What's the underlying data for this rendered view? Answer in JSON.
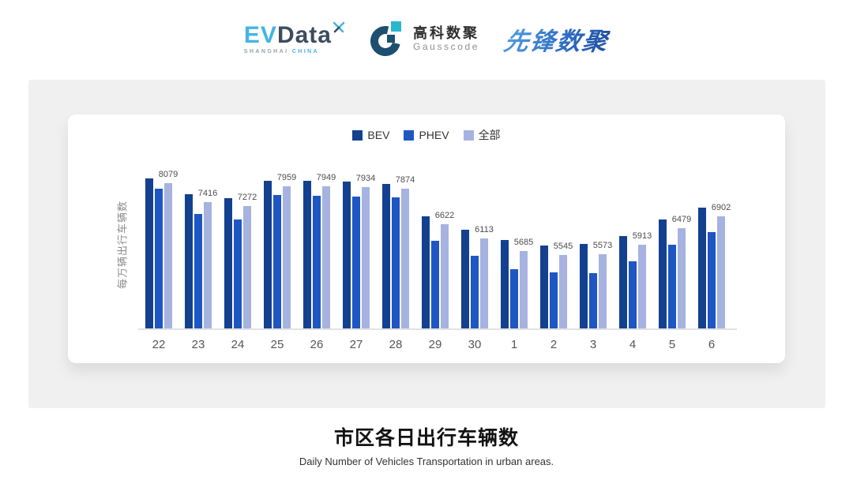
{
  "header": {
    "logo_evdata": {
      "ev": "EV",
      "data": "Data",
      "sub_left": "SHANGHAI",
      "sub_right": "CHINA"
    },
    "logo_gausscode": {
      "cn": "高科数聚",
      "en": "Gausscode"
    },
    "logo_xianfeng": {
      "text": "先锋数聚"
    }
  },
  "chart_data": {
    "type": "bar",
    "title": "市区各日出行车辆数",
    "subtitle": "Daily Number of Vehicles Transportation in urban areas.",
    "ylabel": "每万辆出行车辆数",
    "categories": [
      "22",
      "23",
      "24",
      "25",
      "26",
      "27",
      "28",
      "29",
      "30",
      "1",
      "2",
      "3",
      "4",
      "5",
      "6"
    ],
    "series": [
      {
        "key": "bev",
        "name": "BEV",
        "color": "#14418F",
        "values": [
          8240,
          7680,
          7550,
          8160,
          8150,
          8130,
          8050,
          6910,
          6430,
          6070,
          5880,
          5930,
          6220,
          6800,
          7210
        ]
      },
      {
        "key": "phev",
        "name": "PHEV",
        "color": "#1E56C3",
        "values": [
          7880,
          6980,
          6780,
          7650,
          7640,
          7610,
          7560,
          6050,
          5520,
          5030,
          4920,
          4890,
          5320,
          5910,
          6360
        ]
      },
      {
        "key": "all",
        "name": "全部",
        "color": "#A6B3E0",
        "values": [
          8079,
          7416,
          7272,
          7959,
          7949,
          7934,
          7874,
          6622,
          6113,
          5685,
          5545,
          5573,
          5913,
          6479,
          6902
        ]
      }
    ],
    "labels_on_series": "全部",
    "ylim": [
      2950,
      9350
    ],
    "grid": false,
    "legend_position": "top-center",
    "axis_line_color": "#e2e2e2"
  },
  "footer": {
    "title": "市区各日出行车辆数",
    "subtitle": "Daily Number of Vehicles Transportation in urban areas."
  }
}
